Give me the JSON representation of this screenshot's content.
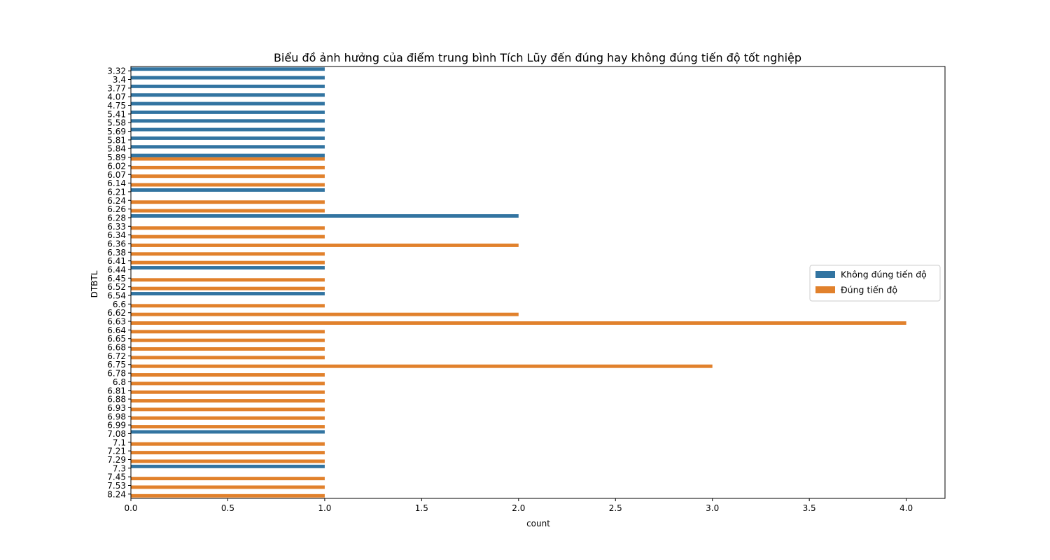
{
  "chart_data": {
    "type": "bar",
    "orientation": "horizontal",
    "title": "Biểu đồ ảnh hưởng của điểm trung bình Tích Lũy đến đúng hay không đúng tiến độ tốt nghiệp",
    "xlabel": "count",
    "ylabel": "DTBTL",
    "xlim": [
      0,
      4.2
    ],
    "xticks": [
      "0.0",
      "0.5",
      "1.0",
      "1.5",
      "2.0",
      "2.5",
      "3.0",
      "3.5",
      "4.0"
    ],
    "grid": false,
    "legend_position": "center-right",
    "categories": [
      "3.32",
      "3.4",
      "3.77",
      "4.07",
      "4.75",
      "5.41",
      "5.58",
      "5.69",
      "5.81",
      "5.84",
      "5.89",
      "6.02",
      "6.07",
      "6.14",
      "6.21",
      "6.24",
      "6.26",
      "6.28",
      "6.33",
      "6.34",
      "6.36",
      "6.38",
      "6.41",
      "6.44",
      "6.45",
      "6.52",
      "6.54",
      "6.6",
      "6.62",
      "6.63",
      "6.64",
      "6.65",
      "6.68",
      "6.72",
      "6.75",
      "6.78",
      "6.8",
      "6.81",
      "6.88",
      "6.93",
      "6.98",
      "6.99",
      "7.08",
      "7.1",
      "7.21",
      "7.29",
      "7.3",
      "7.45",
      "7.53",
      "8.24"
    ],
    "series": [
      {
        "name": "Không đúng tiến độ",
        "color": "#3274a1",
        "values": [
          1,
          1,
          1,
          1,
          1,
          1,
          1,
          1,
          1,
          1,
          1,
          0,
          0,
          0,
          1,
          0,
          0,
          2,
          0,
          0,
          0,
          0,
          0,
          1,
          0,
          0,
          1,
          0,
          0,
          0,
          0,
          0,
          0,
          0,
          0,
          0,
          0,
          0,
          0,
          0,
          0,
          0,
          1,
          0,
          0,
          0,
          1,
          0,
          0,
          0
        ]
      },
      {
        "name": "Đúng tiến độ",
        "color": "#e1812c",
        "values": [
          0,
          0,
          0,
          0,
          0,
          0,
          0,
          0,
          0,
          0,
          1,
          1,
          1,
          1,
          0,
          1,
          1,
          0,
          1,
          1,
          2,
          1,
          1,
          0,
          1,
          1,
          0,
          1,
          2,
          4,
          1,
          1,
          1,
          1,
          3,
          1,
          1,
          1,
          1,
          1,
          1,
          1,
          0,
          1,
          1,
          1,
          0,
          1,
          1,
          1
        ]
      }
    ]
  }
}
